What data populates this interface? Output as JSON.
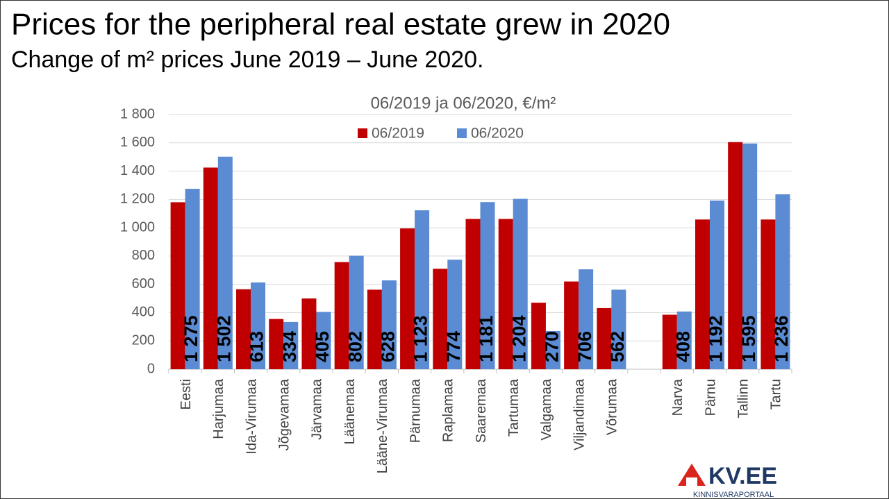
{
  "header": {
    "title": "Prices for the peripheral real estate grew in 2020",
    "subtitle": "Change of m² prices June 2019 – June 2020."
  },
  "chart_data": {
    "type": "bar",
    "title": "06/2019 ja 06/2020, €/m²",
    "categories": [
      "Eesti",
      "Harjumaa",
      "Ida-Virumaa",
      "Jõgevamaa",
      "Järvamaa",
      "Läänemaa",
      "Lääne-Virumaa",
      "Pärnumaa",
      "Raplamaa",
      "Saaremaa",
      "Tartumaa",
      "Valgamaa",
      "Viljandimaa",
      "Võrumaa",
      null,
      "Narva",
      "Pärnu",
      "Tallinn",
      "Tartu"
    ],
    "series": [
      {
        "name": "06/2019",
        "color": "#c00000",
        "values": [
          1180,
          1425,
          565,
          355,
          500,
          757,
          562,
          995,
          710,
          1062,
          1062,
          470,
          620,
          432,
          null,
          385,
          1058,
          1605,
          1058
        ]
      },
      {
        "name": "06/2020",
        "color": "#5b8bd3",
        "values": [
          1275,
          1502,
          613,
          334,
          405,
          802,
          628,
          1123,
          774,
          1181,
          1204,
          270,
          706,
          562,
          null,
          408,
          1192,
          1595,
          1236
        ],
        "value_labels": [
          "1 275",
          "1 502",
          "613",
          "334",
          "405",
          "802",
          "628",
          "1 123",
          "774",
          "1 181",
          "1 204",
          "270",
          "706",
          "562",
          null,
          "408",
          "1 192",
          "1 595",
          "1 236"
        ]
      }
    ],
    "ylim": [
      0,
      1800
    ],
    "yticks": [
      0,
      200,
      400,
      600,
      800,
      {
        "value": 1000,
        "label": "1 000"
      },
      {
        "value": 1200,
        "label": "1 200"
      },
      {
        "value": 1400,
        "label": "1 400"
      },
      {
        "value": 1600,
        "label": "1 600"
      },
      {
        "value": 1800,
        "label": "1 800"
      }
    ],
    "grid": true,
    "legend": "top"
  },
  "logo": {
    "name": "KV.EE",
    "tagline": "KINNISVARAPORTAAL"
  }
}
